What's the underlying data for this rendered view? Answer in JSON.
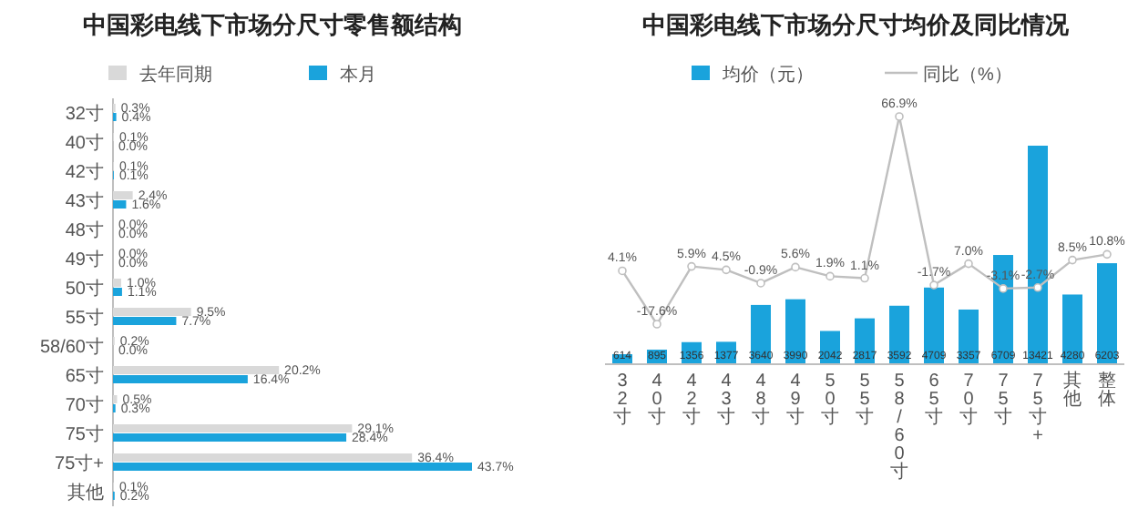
{
  "chart_data": [
    {
      "type": "bar",
      "orientation": "horizontal",
      "title": "中国彩电线下市场分尺寸零售额结构",
      "legend": "top",
      "categories": [
        "32寸",
        "40寸",
        "42寸",
        "43寸",
        "48寸",
        "49寸",
        "50寸",
        "55寸",
        "58/60寸",
        "65寸",
        "70寸",
        "75寸",
        "75寸+",
        "其他"
      ],
      "series": [
        {
          "name": "去年同期",
          "color": "#d9d9d9",
          "values": [
            0.3,
            0.1,
            0.1,
            2.4,
            0.0,
            0.0,
            1.0,
            9.5,
            0.2,
            20.2,
            0.5,
            29.1,
            36.4,
            0.1
          ],
          "value_labels": [
            "0.3%",
            "0.1%",
            "0.1%",
            "2.4%",
            "0.0%",
            "0.0%",
            "1.0%",
            "9.5%",
            "0.2%",
            "20.2%",
            "0.5%",
            "29.1%",
            "36.4%",
            "0.1%"
          ]
        },
        {
          "name": "本月",
          "color": "#1aa3dc",
          "values": [
            0.4,
            0.0,
            0.1,
            1.6,
            0.0,
            0.0,
            1.1,
            7.7,
            0.0,
            16.4,
            0.3,
            28.4,
            43.7,
            0.2
          ],
          "value_labels": [
            "0.4%",
            "0.0%",
            "0.1%",
            "1.6%",
            "0.0%",
            "0.0%",
            "1.1%",
            "7.7%",
            "0.0%",
            "16.4%",
            "0.3%",
            "28.4%",
            "43.7%",
            "0.2%"
          ]
        }
      ]
    },
    {
      "type": "bar",
      "title": "中国彩电线下市场分尺寸均价及同比情况",
      "legend": "top",
      "categories": [
        "32寸",
        "40寸",
        "42寸",
        "43寸",
        "48寸",
        "49寸",
        "50寸",
        "55寸",
        "58/60寸",
        "65寸",
        "70寸",
        "75寸",
        "75寸+",
        "其他",
        "整体"
      ],
      "series": [
        {
          "name": "均价（元）",
          "color": "#1aa3dc",
          "values": [
            614,
            895,
            1356,
            1377,
            3640,
            3990,
            2042,
            2817,
            3592,
            4709,
            3357,
            6709,
            13421,
            4280,
            6203
          ],
          "value_labels": [
            "614",
            "895",
            "1356",
            "1377",
            "3640",
            "3990",
            "2042",
            "2817",
            "3592",
            "4709",
            "3357",
            "6709",
            "13421",
            "4280",
            "6203"
          ]
        },
        {
          "name": "同比（%）",
          "type": "line",
          "axis": "y2",
          "color": "#bfbfbf",
          "marker": "circle",
          "values": [
            4.1,
            -17.6,
            5.9,
            4.5,
            -0.9,
            5.6,
            1.9,
            1.1,
            66.9,
            -1.7,
            7.0,
            -3.1,
            -2.7,
            8.5,
            10.8
          ],
          "value_labels": [
            "4.1%",
            "-17.6%",
            "5.9%",
            "4.5%",
            "-0.9%",
            "5.6%",
            "1.9%",
            "1.1%",
            "66.9%",
            "-1.7%",
            "7.0%",
            "-3.1%",
            "-2.7%",
            "8.5%",
            "10.8%"
          ]
        }
      ]
    }
  ]
}
